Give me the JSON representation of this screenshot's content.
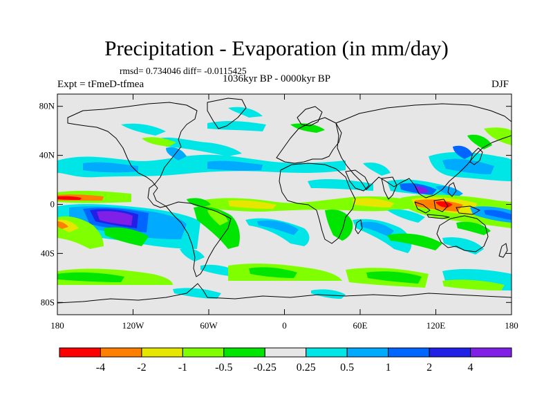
{
  "header": {
    "title": "Precipitation - Evaporation (in mm/day)",
    "stats": "rmsd= 0.734046 diff= -0.0115425",
    "experiment": "Expt = tFmeD-tfmea",
    "period": "1036kyr BP - 0000kyr BP",
    "season": "DJF"
  },
  "map": {
    "type": "contour-map",
    "projection": "cylindrical-equidistant",
    "lon_range": [
      -180,
      180
    ],
    "lat_range": [
      -90,
      90
    ],
    "lat_ticks": [
      {
        "value": 80,
        "label": "80N"
      },
      {
        "value": 40,
        "label": "40N"
      },
      {
        "value": 0,
        "label": "0"
      },
      {
        "value": -40,
        "label": "40S"
      },
      {
        "value": -80,
        "label": "80S"
      }
    ],
    "lon_ticks": [
      {
        "value": -180,
        "label": "180"
      },
      {
        "value": -120,
        "label": "120W"
      },
      {
        "value": -60,
        "label": "60W"
      },
      {
        "value": 0,
        "label": "0"
      },
      {
        "value": 60,
        "label": "60E"
      },
      {
        "value": 120,
        "label": "120E"
      },
      {
        "value": 180,
        "label": "180"
      }
    ],
    "background_color": "#e6e6e6"
  },
  "colorbar": {
    "colors": [
      "#ff0000",
      "#ff8000",
      "#e6e600",
      "#80ff00",
      "#00e600",
      "#e6e6e6",
      "#00e6e6",
      "#00aaff",
      "#0066ff",
      "#2020e6",
      "#8020e6"
    ],
    "labels": [
      "-4",
      "-2",
      "-1",
      "-0.5",
      "-0.25",
      "0.25",
      "0.5",
      "1",
      "2",
      "4"
    ]
  }
}
